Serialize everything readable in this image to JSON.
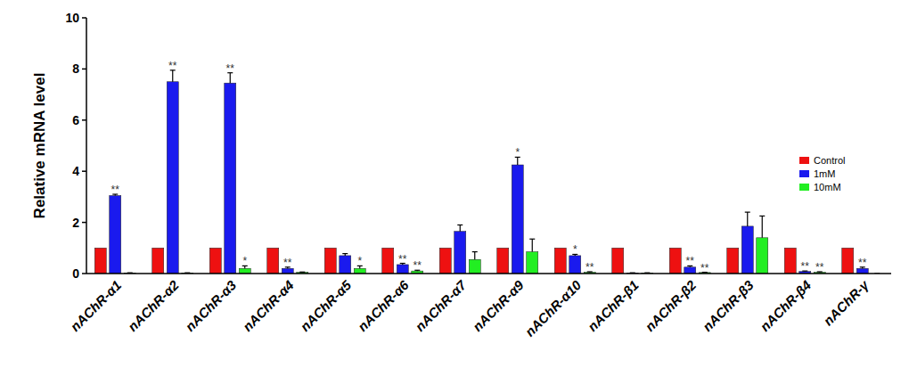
{
  "chart_data": {
    "type": "bar",
    "y_label": "Relative mRNA level",
    "categories": [
      "nAChR-α1",
      "nAChR-α2",
      "nAChR-α3",
      "nAChR-α4",
      "nAChR-α5",
      "nAChR-α6",
      "nAChR-α7",
      "nAChR-α9",
      "nAChR-α10",
      "nAChR-β1",
      "nAChR-β2",
      "nAChR-β3",
      "nAChR-β4",
      "nAChR-γ"
    ],
    "series": [
      {
        "name": "Control",
        "color": "#ee1111",
        "values": [
          1,
          1,
          1,
          1,
          1,
          1,
          1,
          1,
          1,
          1,
          1,
          1,
          1,
          1
        ]
      },
      {
        "name": "1mM",
        "color": "#1a1aee",
        "values": [
          3.05,
          7.5,
          7.45,
          0.2,
          0.7,
          0.35,
          1.65,
          4.25,
          0.7,
          0.02,
          0.25,
          1.85,
          0.08,
          0.2
        ],
        "errors": [
          0.05,
          0.45,
          0.4,
          0.05,
          0.08,
          0.05,
          0.25,
          0.3,
          0.05,
          0.01,
          0.05,
          0.55,
          0.02,
          0.05
        ],
        "significance": [
          "**",
          "**",
          "**",
          "**",
          null,
          "**",
          null,
          "*",
          "*",
          null,
          "**",
          null,
          "**",
          "**"
        ]
      },
      {
        "name": "10mM",
        "color": "#22ee22",
        "values": [
          0.02,
          0.02,
          0.2,
          0.05,
          0.2,
          0.1,
          0.55,
          0.85,
          0.05,
          0.02,
          0.04,
          1.4,
          0.05,
          0
        ],
        "errors": [
          0.01,
          0.01,
          0.1,
          0.01,
          0.1,
          0.03,
          0.3,
          0.5,
          0.02,
          0.01,
          0.01,
          0.85,
          0.02,
          0
        ],
        "significance": [
          null,
          null,
          "*",
          null,
          "*",
          "**",
          null,
          null,
          "**",
          null,
          "**",
          null,
          "**",
          null
        ]
      }
    ],
    "ylim": [
      0,
      10
    ],
    "yticks": [
      0,
      2,
      4,
      6,
      8,
      10
    ],
    "legend": "right",
    "grid": false
  }
}
